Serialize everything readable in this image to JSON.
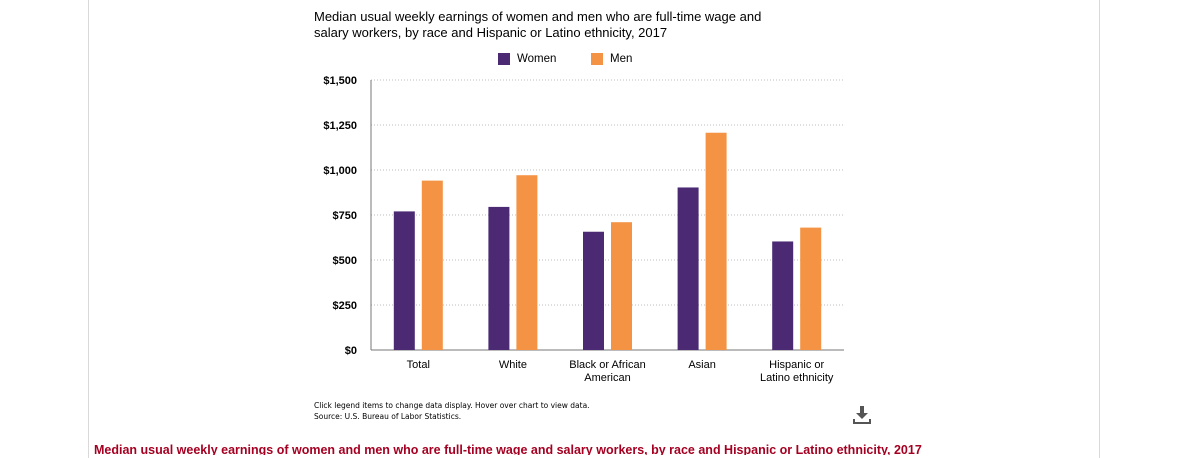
{
  "chart": {
    "title_line1": "Median usual weekly earnings of women and men who are full-time wage and",
    "title_line2": "salary workers, by race and Hispanic or Latino ethnicity, 2017",
    "legend": [
      {
        "label": "Women",
        "color": "#4b2a73"
      },
      {
        "label": "Men",
        "color": "#f39343"
      }
    ],
    "footnote_line1": "Click legend items to change data display. Hover over chart to view data.",
    "footnote_line2": "Source: U.S. Bureau of Labor Statistics.",
    "download_icon": "download-icon"
  },
  "caption": "Median usual weekly earnings of women and men who are full-time wage and salary workers, by race and Hispanic or Latino ethnicity, 2017",
  "chart_data": {
    "type": "bar",
    "title": "Median usual weekly earnings of women and men who are full-time wage and salary workers, by race and Hispanic or Latino ethnicity, 2017",
    "categories": [
      [
        "Total"
      ],
      [
        "White"
      ],
      [
        "Black or African",
        "American"
      ],
      [
        "Asian"
      ],
      [
        "Hispanic or",
        "Latino ethnicity"
      ]
    ],
    "series": [
      {
        "name": "Women",
        "color": "#4b2a73",
        "values": [
          770,
          795,
          657,
          903,
          603
        ]
      },
      {
        "name": "Men",
        "color": "#f39343",
        "values": [
          941,
          971,
          710,
          1207,
          680
        ]
      }
    ],
    "ylim": [
      0,
      1500
    ],
    "yticks": [
      0,
      250,
      500,
      750,
      1000,
      1250,
      1500
    ],
    "ytick_labels": [
      "$0",
      "$250",
      "$500",
      "$750",
      "$1,000",
      "$1,250",
      "$1,500"
    ],
    "grid": true,
    "legend_position": "top-center"
  }
}
